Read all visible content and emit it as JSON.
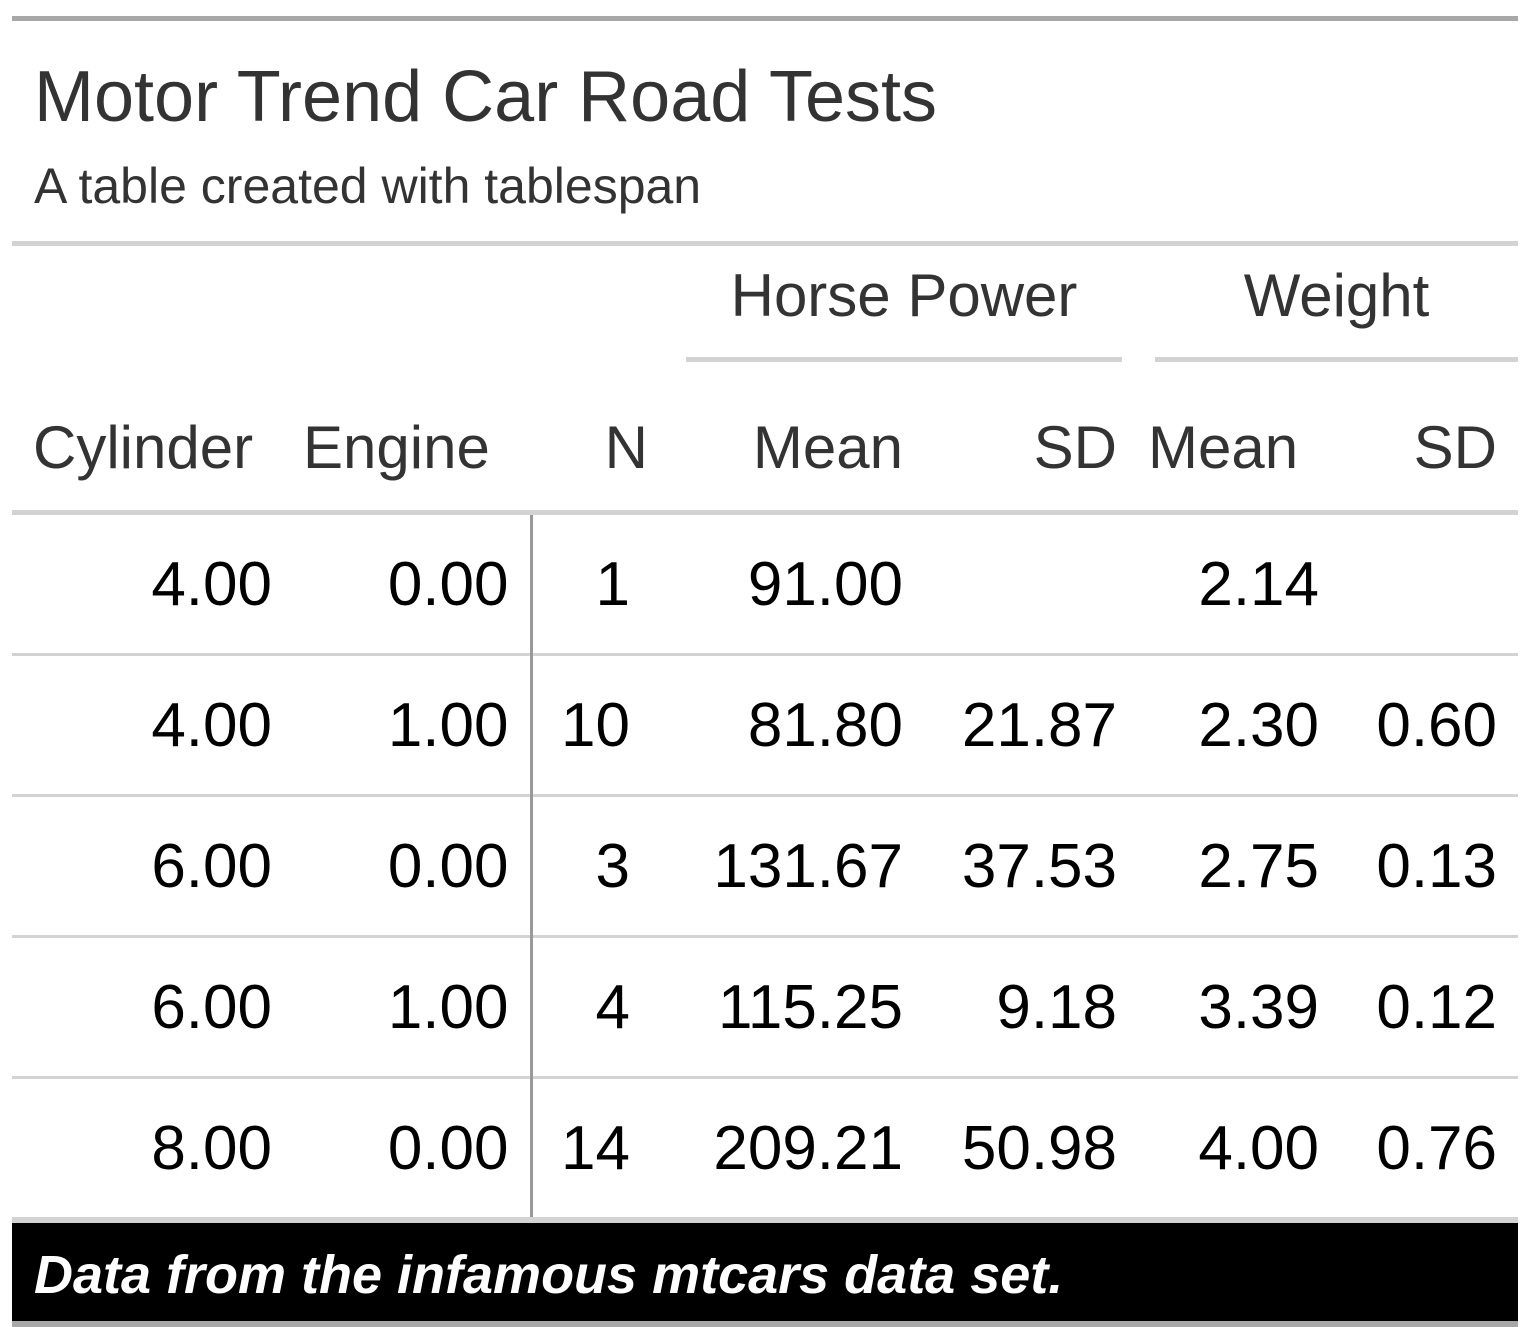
{
  "header": {
    "title": "Motor Trend Car Road Tests",
    "subtitle": "A table created with tablespan"
  },
  "spanners": {
    "hp": "Horse Power",
    "weight": "Weight"
  },
  "columns": [
    "Cylinder",
    "Engine",
    "N",
    "Mean",
    "SD",
    "Mean",
    "SD"
  ],
  "rows": [
    [
      "4.00",
      "0.00",
      "1",
      "91.00",
      "",
      "2.14",
      ""
    ],
    [
      "4.00",
      "1.00",
      "10",
      "81.80",
      "21.87",
      "2.30",
      "0.60"
    ],
    [
      "6.00",
      "0.00",
      "3",
      "131.67",
      "37.53",
      "2.75",
      "0.13"
    ],
    [
      "6.00",
      "1.00",
      "4",
      "115.25",
      "9.18",
      "3.39",
      "0.12"
    ],
    [
      "8.00",
      "0.00",
      "14",
      "209.21",
      "50.98",
      "4.00",
      "0.76"
    ]
  ],
  "footnote": "Data from the infamous mtcars data set.",
  "colors": {
    "text": "#000000",
    "heading": "#333333",
    "border_dark": "#a8a8a8",
    "border_light": "#d3d3d3",
    "footnote_bg": "#000000",
    "footnote_text": "#ffffff"
  }
}
